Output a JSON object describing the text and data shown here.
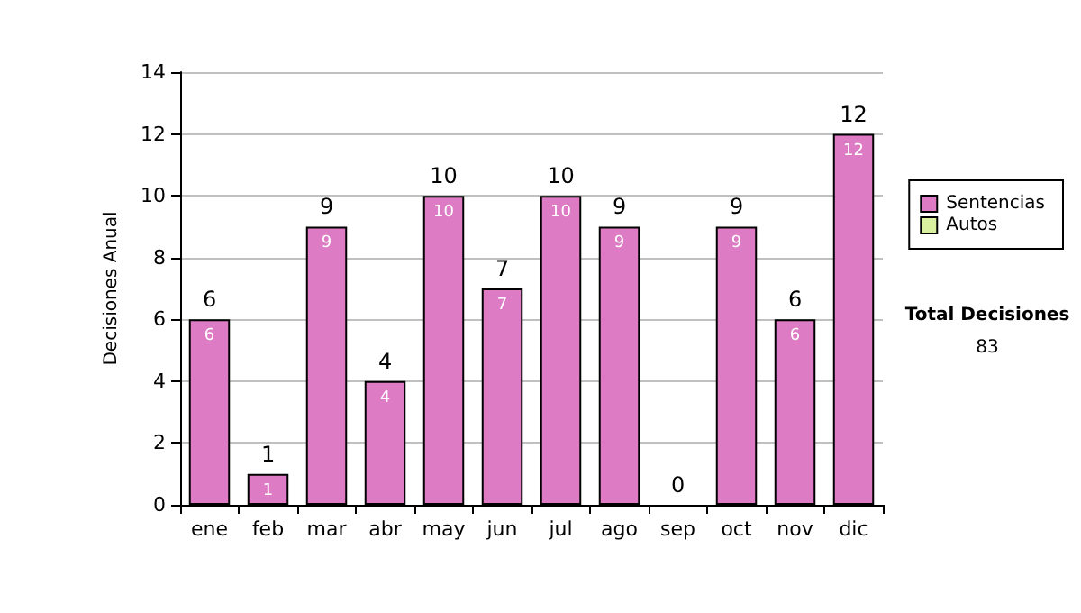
{
  "chart_data": {
    "type": "bar",
    "ylabel": "Decisiones Anual",
    "categories": [
      "ene",
      "feb",
      "mar",
      "abr",
      "may",
      "jun",
      "jul",
      "ago",
      "sep",
      "oct",
      "nov",
      "dic"
    ],
    "series": [
      {
        "name": "Sentencias",
        "color": "#dd7cc4",
        "values": [
          6,
          1,
          9,
          4,
          10,
          7,
          10,
          9,
          0,
          9,
          6,
          12
        ],
        "value_labels": [
          "6",
          "1",
          "9",
          "4",
          "10",
          "7",
          "10",
          "9",
          null,
          "9",
          "6",
          "12"
        ]
      },
      {
        "name": "Autos",
        "color": "#d8f0a0",
        "values": [
          0,
          0,
          0,
          0,
          0,
          0,
          0,
          0,
          0,
          0,
          0,
          0
        ]
      }
    ],
    "stacked": true,
    "totals": [
      "6",
      "1",
      "9",
      "4",
      "10",
      "7",
      "10",
      "9",
      "0",
      "9",
      "6",
      "12"
    ],
    "ylim": [
      0,
      14
    ],
    "yticks": [
      0,
      2,
      4,
      6,
      8,
      10,
      12,
      14
    ],
    "grid": "y",
    "legend": "right",
    "annotations": [
      "Total Decisiones",
      "83"
    ]
  }
}
